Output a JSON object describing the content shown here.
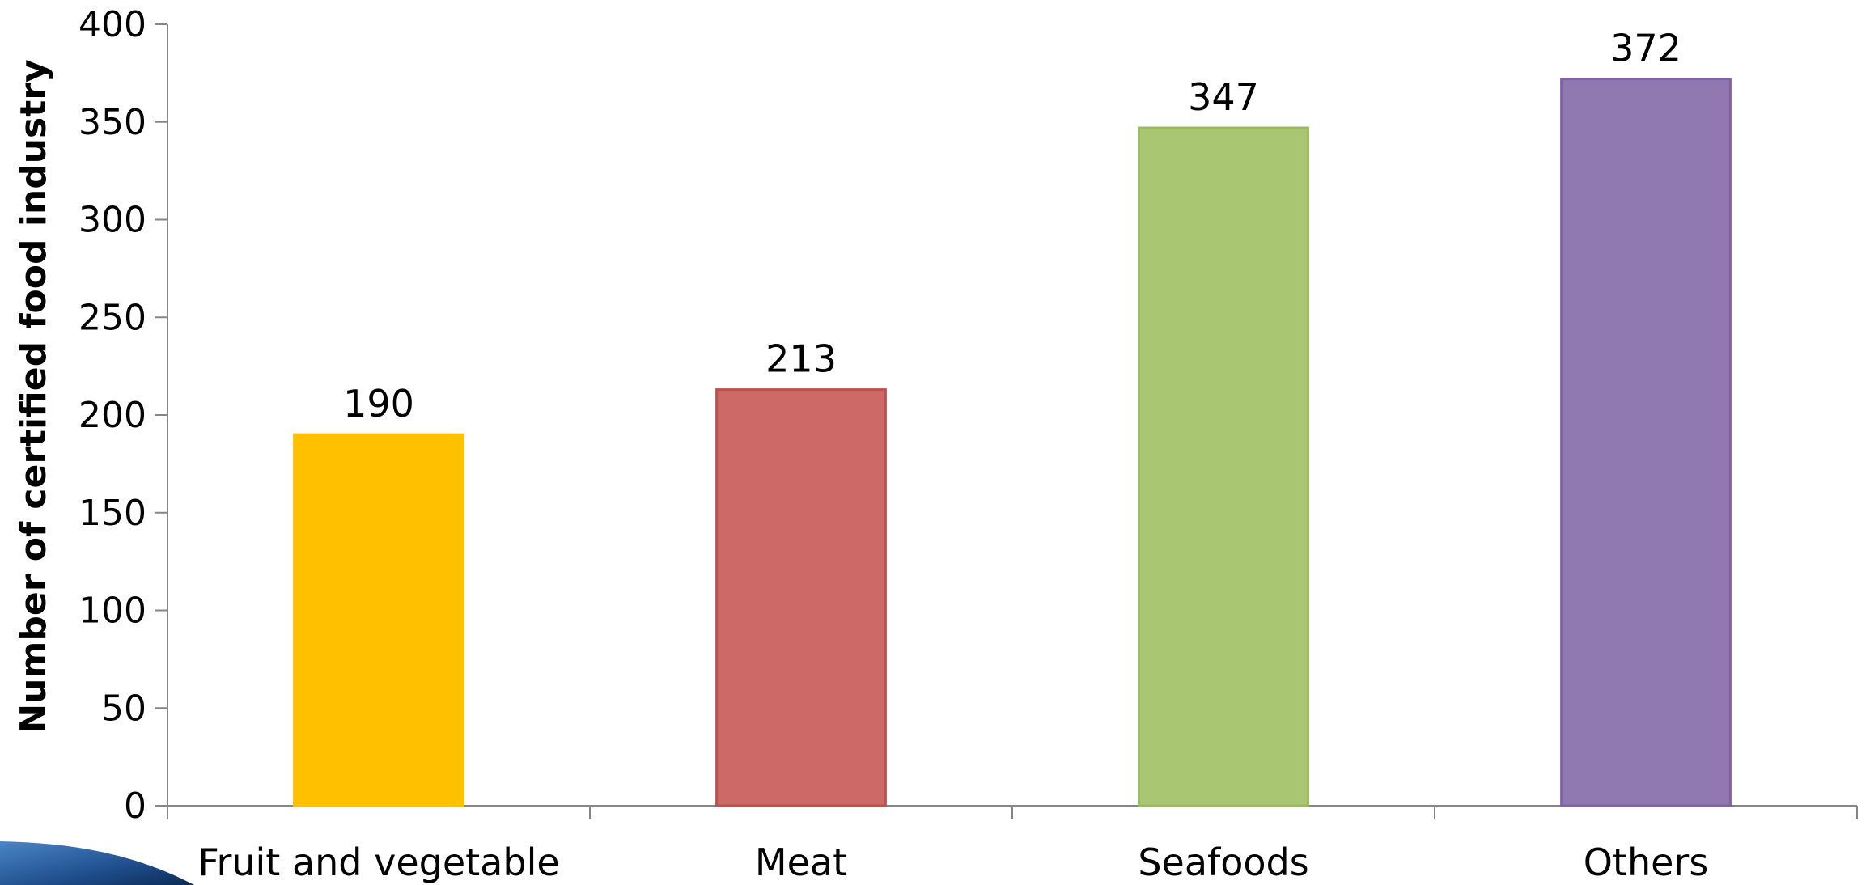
{
  "chart_data": {
    "type": "bar",
    "categories": [
      "Fruit and vegetable",
      "Meat",
      "Seafoods",
      "Others"
    ],
    "values": [
      190,
      213,
      347,
      372
    ],
    "data_labels": [
      "190",
      "213",
      "347",
      "372"
    ],
    "colors": [
      "#FFC000",
      "#CD6967",
      "#A9C773",
      "#8F79B0"
    ],
    "border_colors": [
      "#FFC000",
      "#C0504D",
      "#9BBB59",
      "#8064A2"
    ],
    "title": "",
    "xlabel": "",
    "ylabel": "Number of certified food industry",
    "ylim": [
      0,
      400
    ],
    "yticks": [
      0,
      50,
      100,
      150,
      200,
      250,
      300,
      350,
      400
    ],
    "grid": false,
    "legend": "none"
  },
  "decoration": {
    "corner_swoosh_colors": [
      "#1F4E8C",
      "#4A86C8",
      "#0B2A55"
    ]
  }
}
